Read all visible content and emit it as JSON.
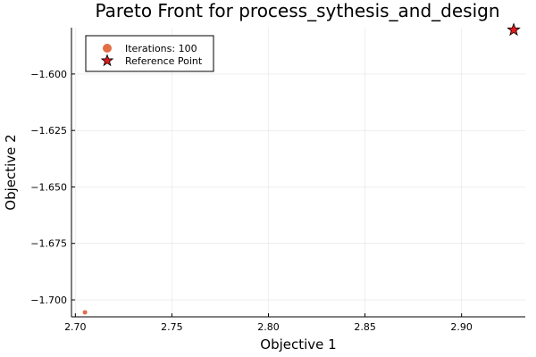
{
  "chart_data": {
    "type": "scatter",
    "title": "Pareto Front for process_sythesis_and_design",
    "xlabel": "Objective 1",
    "ylabel": "Objective 2",
    "xlim": [
      2.698,
      2.933
    ],
    "ylim": [
      -1.7075,
      -1.5795
    ],
    "xticks": [
      2.7,
      2.75,
      2.8,
      2.85,
      2.9
    ],
    "xtick_labels": [
      "2.70",
      "2.75",
      "2.80",
      "2.85",
      "2.90"
    ],
    "yticks": [
      -1.6,
      -1.625,
      -1.65,
      -1.675,
      -1.7
    ],
    "ytick_labels": [
      "−1.600",
      "−1.625",
      "−1.650",
      "−1.675",
      "−1.700"
    ],
    "grid": true,
    "legend_position": "top-left",
    "series": [
      {
        "name": "Iterations: 100",
        "marker": "circle",
        "color": "#e26f46",
        "points": [
          {
            "x": 2.705,
            "y": -1.7055
          }
        ]
      },
      {
        "name": "Reference Point",
        "marker": "star",
        "color": "#e31a1c",
        "points": [
          {
            "x": 2.927,
            "y": -1.5805
          }
        ]
      }
    ]
  }
}
